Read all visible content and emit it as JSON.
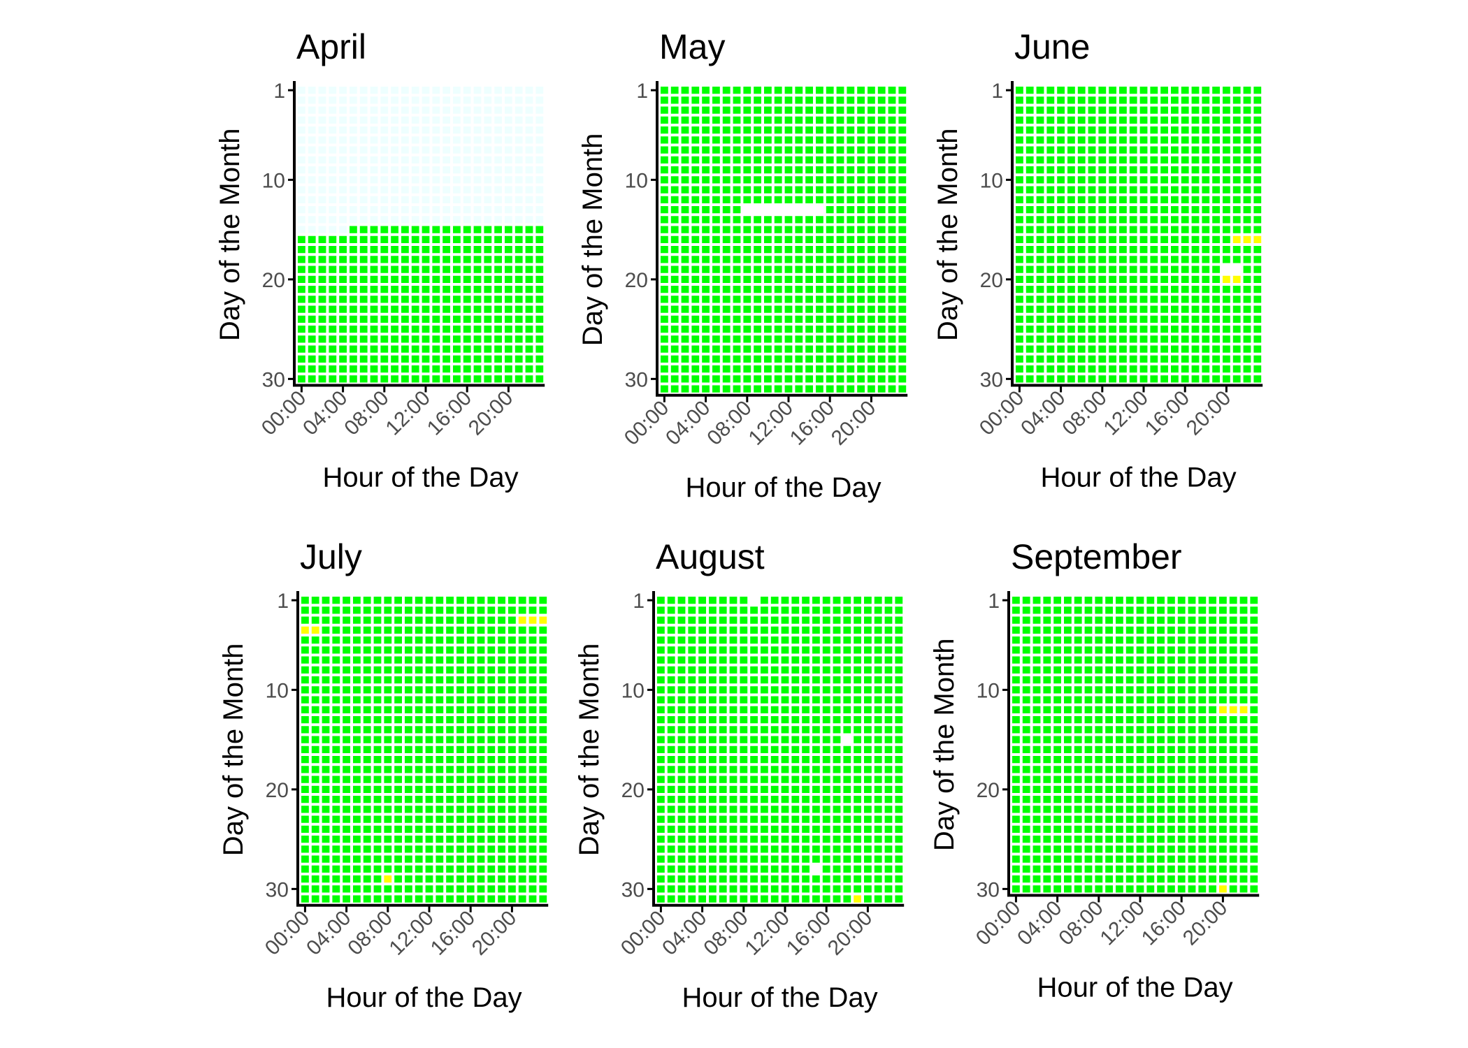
{
  "chart_data": {
    "type": "heatmap",
    "layout": "2 rows x 3 columns of small-multiple panels",
    "xlabel": "Hour of the Day",
    "ylabel": "Day of the Month",
    "x_categories": [
      "00:00",
      "01:00",
      "02:00",
      "03:00",
      "04:00",
      "05:00",
      "06:00",
      "07:00",
      "08:00",
      "09:00",
      "10:00",
      "11:00",
      "12:00",
      "13:00",
      "14:00",
      "15:00",
      "16:00",
      "17:00",
      "18:00",
      "19:00",
      "20:00",
      "21:00",
      "22:00",
      "23:00"
    ],
    "x_tick_labels": [
      "00:00",
      "04:00",
      "08:00",
      "12:00",
      "16:00",
      "20:00"
    ],
    "x_tick_hours": [
      0,
      4,
      8,
      12,
      16,
      20
    ],
    "y_tick_labels": [
      "1",
      "10",
      "20",
      "30"
    ],
    "y_tick_days": [
      1,
      10,
      20,
      30
    ],
    "colors": {
      "available": "#00ff00",
      "partial": "#ffff00",
      "missing": "#ffffff",
      "future": "#eeffff"
    },
    "default_status": "available",
    "panels": [
      {
        "title": "April",
        "days": 30,
        "overrides": [
          {
            "status": "future",
            "days": [
              1,
              14
            ],
            "hours": [
              0,
              23
            ]
          },
          {
            "status": "future",
            "days": [
              15,
              15
            ],
            "hours": [
              0,
              4
            ]
          }
        ]
      },
      {
        "title": "May",
        "days": 31,
        "overrides": [
          {
            "status": "missing",
            "days": [
              13,
              13
            ],
            "hours": [
              8,
              15
            ]
          }
        ]
      },
      {
        "title": "June",
        "days": 30,
        "overrides": [
          {
            "status": "partial",
            "days": [
              16,
              16
            ],
            "hours": [
              21,
              23
            ]
          },
          {
            "status": "missing",
            "days": [
              19,
              19
            ],
            "hours": [
              20,
              21
            ]
          },
          {
            "status": "partial",
            "days": [
              20,
              20
            ],
            "hours": [
              20,
              21
            ]
          }
        ]
      },
      {
        "title": "July",
        "days": 31,
        "overrides": [
          {
            "status": "partial",
            "days": [
              3,
              3
            ],
            "hours": [
              21,
              23
            ]
          },
          {
            "status": "partial",
            "days": [
              4,
              4
            ],
            "hours": [
              0,
              1
            ]
          },
          {
            "status": "partial",
            "days": [
              29,
              29
            ],
            "hours": [
              8,
              8
            ]
          }
        ]
      },
      {
        "title": "August",
        "days": 31,
        "overrides": [
          {
            "status": "missing",
            "days": [
              1,
              1
            ],
            "hours": [
              9,
              9
            ]
          },
          {
            "status": "missing",
            "days": [
              15,
              15
            ],
            "hours": [
              18,
              18
            ]
          },
          {
            "status": "missing",
            "days": [
              28,
              28
            ],
            "hours": [
              15,
              15
            ]
          },
          {
            "status": "partial",
            "days": [
              31,
              31
            ],
            "hours": [
              19,
              19
            ]
          }
        ]
      },
      {
        "title": "September",
        "days": 30,
        "overrides": [
          {
            "status": "partial",
            "days": [
              12,
              12
            ],
            "hours": [
              20,
              22
            ]
          },
          {
            "status": "partial",
            "days": [
              30,
              30
            ],
            "hours": [
              20,
              20
            ]
          }
        ]
      }
    ]
  }
}
